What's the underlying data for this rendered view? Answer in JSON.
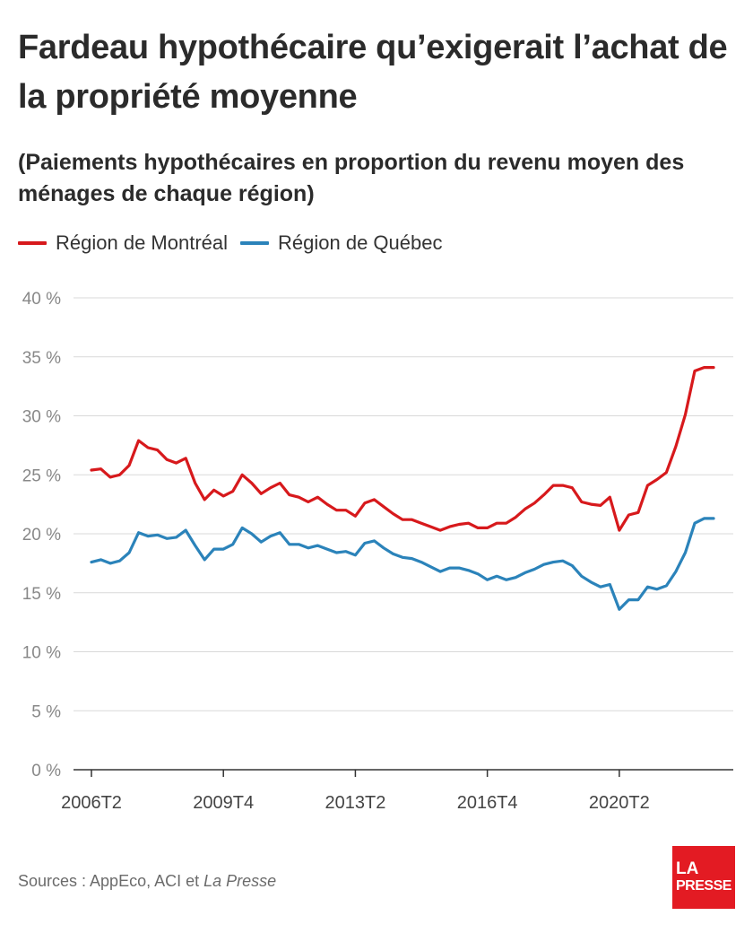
{
  "title": "Fardeau hypothécaire qu’exigerait l’achat de la propriété moyenne",
  "subtitle": "(Paiements hypothécaires en proportion du revenu moyen des ménages de chaque région)",
  "source": {
    "prefix": "Sources : AppEco, ACI et ",
    "italic": "La Presse"
  },
  "logo": {
    "line1": "LA",
    "line2": "PRESSE"
  },
  "colors": {
    "montreal": "#d7191c",
    "quebec": "#2b83ba",
    "grid": "#d9d9d9",
    "axis": "#333333",
    "tick_text": "#888888"
  },
  "chart_data": {
    "type": "line",
    "title": "Fardeau hypothécaire qu’exigerait l’achat de la propriété moyenne",
    "subtitle": "(Paiements hypothécaires en proportion du revenu moyen des ménages de chaque région)",
    "xlabel": "",
    "ylabel": "",
    "y_unit": "%",
    "ylim": [
      0,
      40
    ],
    "y_ticks": [
      "0 %",
      "5 %",
      "10 %",
      "15 %",
      "20 %",
      "25 %",
      "30 %",
      "35 %",
      "40 %"
    ],
    "x_tick_labels": [
      "2006T2",
      "2009T4",
      "2013T2",
      "2016T4",
      "2020T2"
    ],
    "grid": true,
    "legend": "top-left",
    "x": [
      "2006T2",
      "2006T3",
      "2006T4",
      "2007T1",
      "2007T2",
      "2007T3",
      "2007T4",
      "2008T1",
      "2008T2",
      "2008T3",
      "2008T4",
      "2009T1",
      "2009T2",
      "2009T3",
      "2009T4",
      "2010T1",
      "2010T2",
      "2010T3",
      "2010T4",
      "2011T1",
      "2011T2",
      "2011T3",
      "2011T4",
      "2012T1",
      "2012T2",
      "2012T3",
      "2012T4",
      "2013T1",
      "2013T2",
      "2013T3",
      "2013T4",
      "2014T1",
      "2014T2",
      "2014T3",
      "2014T4",
      "2015T1",
      "2015T2",
      "2015T3",
      "2015T4",
      "2016T1",
      "2016T2",
      "2016T3",
      "2016T4",
      "2017T1",
      "2017T2",
      "2017T3",
      "2017T4",
      "2018T1",
      "2018T2",
      "2018T3",
      "2018T4",
      "2019T1",
      "2019T2",
      "2019T3",
      "2019T4",
      "2020T1",
      "2020T2",
      "2020T3",
      "2020T4",
      "2021T1",
      "2021T2",
      "2021T3",
      "2021T4",
      "2022T1",
      "2022T2",
      "2022T3",
      "2022T4"
    ],
    "series": [
      {
        "name": "Région de Montréal",
        "color": "#d7191c",
        "values": [
          25.4,
          25.5,
          24.8,
          25.0,
          25.8,
          27.9,
          27.3,
          27.1,
          26.3,
          26.0,
          26.4,
          24.3,
          22.9,
          23.7,
          23.2,
          23.6,
          25.0,
          24.3,
          23.4,
          23.9,
          24.3,
          23.3,
          23.1,
          22.7,
          23.1,
          22.5,
          22.0,
          22.0,
          21.5,
          22.6,
          22.9,
          22.3,
          21.7,
          21.2,
          21.2,
          20.9,
          20.6,
          20.3,
          20.6,
          20.8,
          20.9,
          20.5,
          20.5,
          20.9,
          20.9,
          21.4,
          22.1,
          22.6,
          23.3,
          24.1,
          24.1,
          23.9,
          22.7,
          22.5,
          22.4,
          23.1,
          20.3,
          21.6,
          21.8,
          24.1,
          24.6,
          25.2,
          27.4,
          30.1,
          33.8,
          34.1,
          34.1
        ]
      },
      {
        "name": "Région de Québec",
        "color": "#2b83ba",
        "values": [
          17.6,
          17.8,
          17.5,
          17.7,
          18.4,
          20.1,
          19.8,
          19.9,
          19.6,
          19.7,
          20.3,
          19.0,
          17.8,
          18.7,
          18.7,
          19.1,
          20.5,
          20.0,
          19.3,
          19.8,
          20.1,
          19.1,
          19.1,
          18.8,
          19.0,
          18.7,
          18.4,
          18.5,
          18.2,
          19.2,
          19.4,
          18.8,
          18.3,
          18.0,
          17.9,
          17.6,
          17.2,
          16.8,
          17.1,
          17.1,
          16.9,
          16.6,
          16.1,
          16.4,
          16.1,
          16.3,
          16.7,
          17.0,
          17.4,
          17.6,
          17.7,
          17.3,
          16.4,
          15.9,
          15.5,
          15.7,
          13.6,
          14.4,
          14.4,
          15.5,
          15.3,
          15.6,
          16.8,
          18.4,
          20.9,
          21.3,
          21.3
        ]
      }
    ]
  }
}
